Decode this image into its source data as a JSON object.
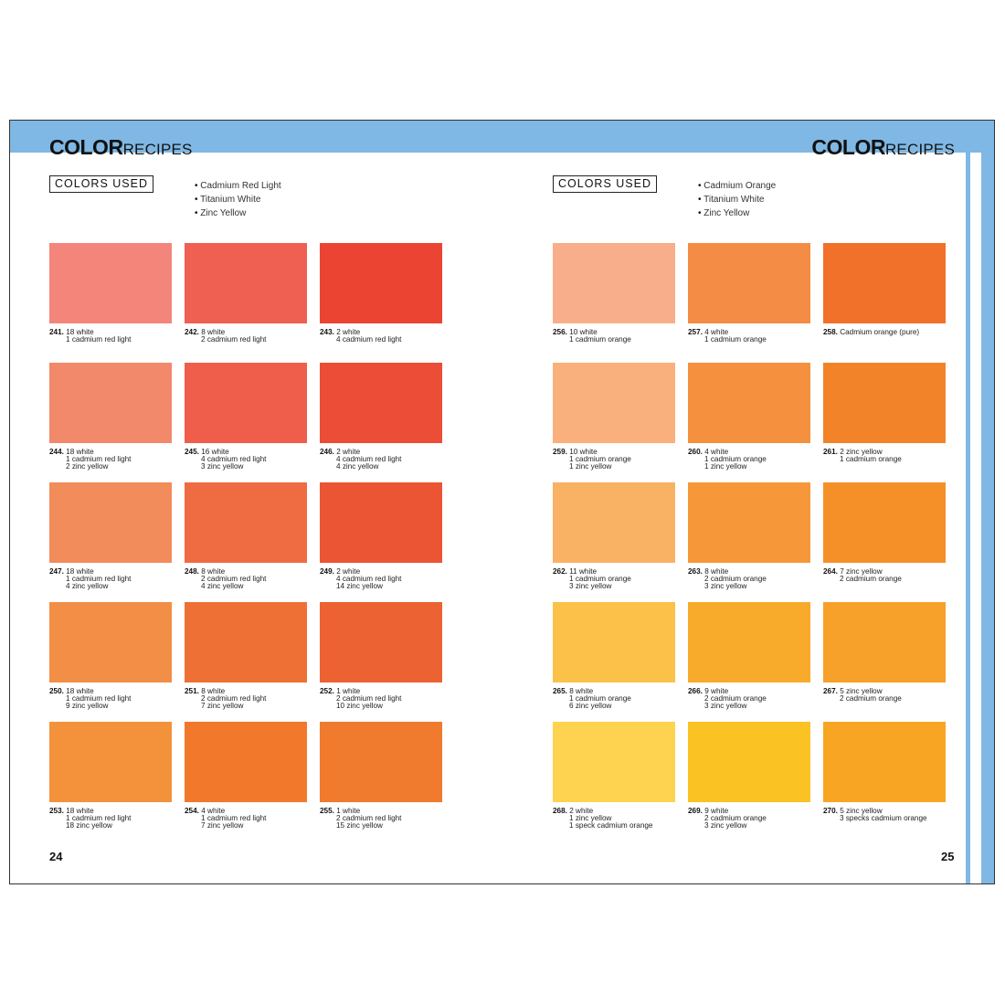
{
  "left_page": {
    "title_bold": "COLOR",
    "title_light": "RECIPES",
    "colors_used_label": "COLORS USED",
    "colors_used": [
      "Cadmium Red Light",
      "Titanium White",
      "Zinc Yellow"
    ],
    "page_number": "24",
    "swatches": [
      {
        "num": "241.",
        "lines": [
          "18 white",
          "1 cadmium red light"
        ],
        "color": "#f3857a"
      },
      {
        "num": "242.",
        "lines": [
          "8 white",
          "2 cadmium red light"
        ],
        "color": "#ef5f52"
      },
      {
        "num": "243.",
        "lines": [
          "2 white",
          "4 cadmium red light"
        ],
        "color": "#ec4433"
      },
      {
        "num": "244.",
        "lines": [
          "18 white",
          "1 cadmium red light",
          "2 zinc yellow"
        ],
        "color": "#f2896a"
      },
      {
        "num": "245.",
        "lines": [
          "16 white",
          "4 cadmium red light",
          "3 zinc yellow"
        ],
        "color": "#ef5e4b"
      },
      {
        "num": "246.",
        "lines": [
          "2 white",
          "4 cadmium red light",
          "4 zinc yellow"
        ],
        "color": "#eb4d36"
      },
      {
        "num": "247.",
        "lines": [
          "18 white",
          "1 cadmium red light",
          "4 zinc yellow"
        ],
        "color": "#f28c5b"
      },
      {
        "num": "248.",
        "lines": [
          "8 white",
          "2 cadmium red light",
          "4 zinc yellow"
        ],
        "color": "#ef6b42"
      },
      {
        "num": "249.",
        "lines": [
          "2 white",
          "4 cadmium red light",
          "14 zinc yellow"
        ],
        "color": "#ec5533"
      },
      {
        "num": "250.",
        "lines": [
          "18 white",
          "1 cadmium red light",
          "9 zinc yellow"
        ],
        "color": "#f28e46"
      },
      {
        "num": "251.",
        "lines": [
          "8 white",
          "2 cadmium red light",
          "7 zinc yellow"
        ],
        "color": "#ef7034"
      },
      {
        "num": "252.",
        "lines": [
          "1 white",
          "2 cadmium red light",
          "10 zinc yellow"
        ],
        "color": "#ed6232"
      },
      {
        "num": "253.",
        "lines": [
          "18 white",
          "1 cadmium red light",
          "18 zinc yellow"
        ],
        "color": "#f4923c"
      },
      {
        "num": "254.",
        "lines": [
          "4 white",
          "1 cadmium red light",
          "7 zinc yellow"
        ],
        "color": "#f2782c"
      },
      {
        "num": "255.",
        "lines": [
          "1 white",
          "2 cadmium red light",
          "15 zinc yellow"
        ],
        "color": "#f07a2e"
      }
    ]
  },
  "right_page": {
    "title_bold": "COLOR",
    "title_light": "RECIPES",
    "colors_used_label": "COLORS USED",
    "colors_used": [
      "Cadmium Orange",
      "Titanium White",
      "Zinc Yellow"
    ],
    "page_number": "25",
    "swatches": [
      {
        "num": "256.",
        "lines": [
          "10 white",
          "1 cadmium orange"
        ],
        "color": "#f8ae8a"
      },
      {
        "num": "257.",
        "lines": [
          "4 white",
          "1 cadmium orange"
        ],
        "color": "#f48c45"
      },
      {
        "num": "258.",
        "lines": [
          "Cadmium orange (pure)"
        ],
        "color": "#f2712a"
      },
      {
        "num": "259.",
        "lines": [
          "10 white",
          "1 cadmium orange",
          "1 zinc yellow"
        ],
        "color": "#f9b07c"
      },
      {
        "num": "260.",
        "lines": [
          "4 white",
          "1 cadmium orange",
          "1 zinc yellow"
        ],
        "color": "#f5913e"
      },
      {
        "num": "261.",
        "lines": [
          "2 zinc yellow",
          "1 cadmium orange"
        ],
        "color": "#f38328"
      },
      {
        "num": "262.",
        "lines": [
          "11 white",
          "1 cadmium orange",
          "3 zinc yellow"
        ],
        "color": "#f9b164"
      },
      {
        "num": "263.",
        "lines": [
          "8 white",
          "2 cadmium orange",
          "3 zinc yellow"
        ],
        "color": "#f6983a"
      },
      {
        "num": "264.",
        "lines": [
          "7 zinc yellow",
          "2 cadmium orange"
        ],
        "color": "#f59028"
      },
      {
        "num": "265.",
        "lines": [
          "8 white",
          "1 cadmium orange",
          "6 zinc yellow"
        ],
        "color": "#fbc148"
      },
      {
        "num": "266.",
        "lines": [
          "9 white",
          "2 cadmium orange",
          "3 zinc yellow"
        ],
        "color": "#f8ab2a"
      },
      {
        "num": "267.",
        "lines": [
          "5 zinc yellow",
          "2 cadmium orange"
        ],
        "color": "#f7a02a"
      },
      {
        "num": "268.",
        "lines": [
          "2 white",
          "1 zinc yellow",
          "1 speck cadmium orange"
        ],
        "color": "#fdd34f"
      },
      {
        "num": "269.",
        "lines": [
          "9 white",
          "2 cadmium orange",
          "3 zinc yellow"
        ],
        "color": "#fbc224"
      },
      {
        "num": "270.",
        "lines": [
          "5 zinc yellow",
          "3 specks cadmium orange"
        ],
        "color": "#f8a524"
      }
    ]
  },
  "colors": {
    "band": "#7fb8e4"
  }
}
